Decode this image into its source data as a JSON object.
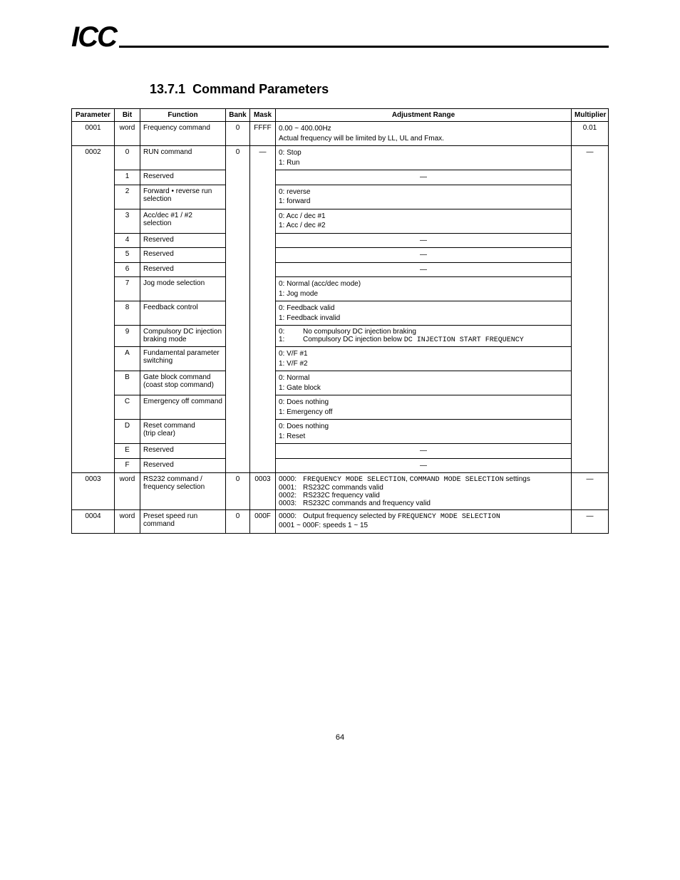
{
  "header": {
    "logo": "ICC"
  },
  "section": {
    "number": "13.7.1",
    "title": "Command Parameters"
  },
  "table": {
    "columns": [
      "Parameter",
      "Bit",
      "Function",
      "Bank",
      "Mask",
      "Adjustment Range",
      "Multiplier"
    ],
    "col_align": [
      "center",
      "center",
      "left",
      "center",
      "center",
      "left",
      "center"
    ],
    "header_fontsize": 10,
    "body_fontsize": 10,
    "border_color": "#000000",
    "background_color": "#ffffff",
    "rows": [
      {
        "param": "0001",
        "bit": "word",
        "func": "Frequency command",
        "bank": "0",
        "mask": "FFFF",
        "adj_lines": [
          "0.00 ~ 400.00Hz",
          "Actual frequency will be limited by LL, UL and Fmax."
        ],
        "mult": "0.01"
      },
      {
        "param": "0002",
        "bit": "0",
        "func": "RUN command",
        "bank": "0",
        "mask": "—",
        "adj_lines": [
          "0: Stop",
          "1: Run"
        ],
        "mult": "—"
      },
      {
        "bit": "1",
        "func": "Reserved",
        "adj_lines": [
          "—"
        ],
        "adj_center": true
      },
      {
        "bit": "2",
        "func": "Forward • reverse run selection",
        "adj_lines": [
          "0: reverse",
          "1: forward"
        ]
      },
      {
        "bit": "3",
        "func": "Acc/dec #1 / #2 selection",
        "adj_lines": [
          "0: Acc / dec #1",
          "1: Acc / dec #2"
        ]
      },
      {
        "bit": "4",
        "func": "Reserved",
        "adj_lines": [
          "—"
        ],
        "adj_center": true
      },
      {
        "bit": "5",
        "func": "Reserved",
        "adj_lines": [
          "—"
        ],
        "adj_center": true
      },
      {
        "bit": "6",
        "func": "Reserved",
        "adj_lines": [
          "—"
        ],
        "adj_center": true
      },
      {
        "bit": "7",
        "func": "Jog mode selection",
        "adj_lines": [
          "0: Normal (acc/dec mode)",
          "1: Jog mode"
        ]
      },
      {
        "bit": "8",
        "func": "Feedback control",
        "adj_lines": [
          "0: Feedback valid",
          "1: Feedback invalid"
        ]
      },
      {
        "bit": "9",
        "func": "Compulsory DC injection braking mode",
        "adj_special": "dc_injection"
      },
      {
        "bit": "A",
        "func": "Fundamental parameter switching",
        "adj_lines": [
          "0: V/F #1",
          "1: V/F #2"
        ]
      },
      {
        "bit": "B",
        "func": "Gate block command\n(coast stop command)",
        "adj_lines": [
          "0: Normal",
          "1: Gate block"
        ]
      },
      {
        "bit": "C",
        "func": "Emergency off command",
        "adj_lines": [
          "0: Does nothing",
          "1: Emergency off"
        ]
      },
      {
        "bit": "D",
        "func": "Reset command\n(trip clear)",
        "adj_lines": [
          "0: Does nothing",
          "1: Reset"
        ]
      },
      {
        "bit": "E",
        "func": "Reserved",
        "adj_lines": [
          "—"
        ],
        "adj_center": true
      },
      {
        "bit": "F",
        "func": "Reserved",
        "adj_lines": [
          "—"
        ],
        "adj_center": true
      },
      {
        "param": "0003",
        "bit": "word",
        "func": "RS232 command / frequency selection",
        "bank": "0",
        "mask": "0003",
        "adj_special": "rs232",
        "mult": "—"
      },
      {
        "param": "0004",
        "bit": "word",
        "func": "Preset speed run command",
        "bank": "0",
        "mask": "000F",
        "adj_special": "preset_speed",
        "mult": "—"
      }
    ],
    "dc_injection": {
      "line0": "0:",
      "line0b": "No compulsory DC injection braking",
      "line1": "1:",
      "line1b": "Compulsory DC injection below ",
      "mono1": "DC INJECTION START FREQUENCY"
    },
    "rs232": {
      "opts": [
        {
          "code": "0000:",
          "text": "",
          "mono": "FREQUENCY MODE SELECTION",
          "text2": ", ",
          "mono2": "COMMAND MODE SELECTION",
          "tail": " settings"
        },
        {
          "code": "0001:",
          "text": "RS232C commands valid"
        },
        {
          "code": "0002:",
          "text": "RS232C frequency valid"
        },
        {
          "code": "0003:",
          "text": "RS232C commands and frequency valid"
        }
      ]
    },
    "preset_speed": {
      "code0": "0000:",
      "text0": "Output frequency selected by ",
      "mono0": "FREQUENCY MODE SELECTION",
      "line1": "0001 ~ 000F: speeds 1 ~ 15"
    }
  },
  "page_number": "64"
}
